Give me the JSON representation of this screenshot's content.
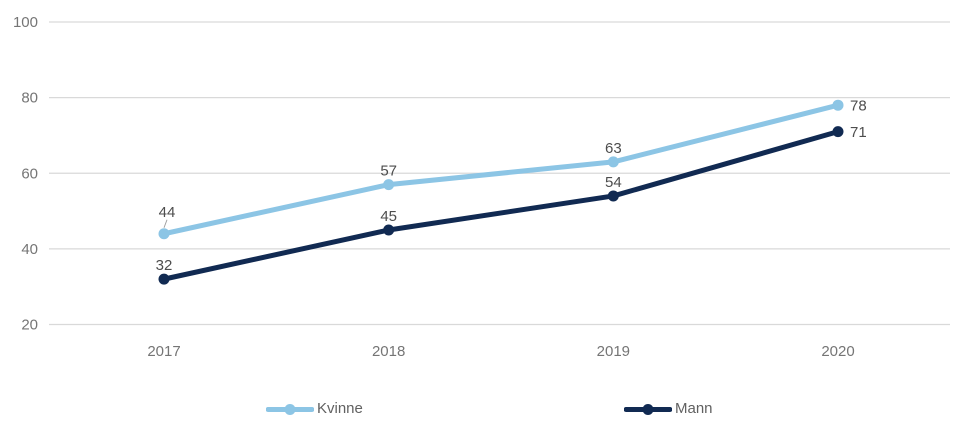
{
  "chart_data": {
    "type": "line",
    "categories": [
      "2017",
      "2018",
      "2019",
      "2020"
    ],
    "series": [
      {
        "name": "Kvinne",
        "values": [
          44,
          57,
          63,
          78
        ],
        "color": "#8cc5e5"
      },
      {
        "name": "Mann",
        "values": [
          32,
          45,
          54,
          71
        ],
        "color": "#112a52"
      }
    ],
    "title": "",
    "xlabel": "",
    "ylabel": "",
    "ylim": [
      20,
      100
    ],
    "yticks": [
      20,
      40,
      60,
      80,
      100
    ],
    "grid": true,
    "data_labels": true,
    "legend_position": "bottom"
  },
  "colors": {
    "background": "#ffffff",
    "gridline": "#d9d9d9",
    "axis_text": "#757575",
    "data_label_text": "#4d4d4d",
    "legend_text": "#616161",
    "leader_line": "#9e9e9e"
  }
}
